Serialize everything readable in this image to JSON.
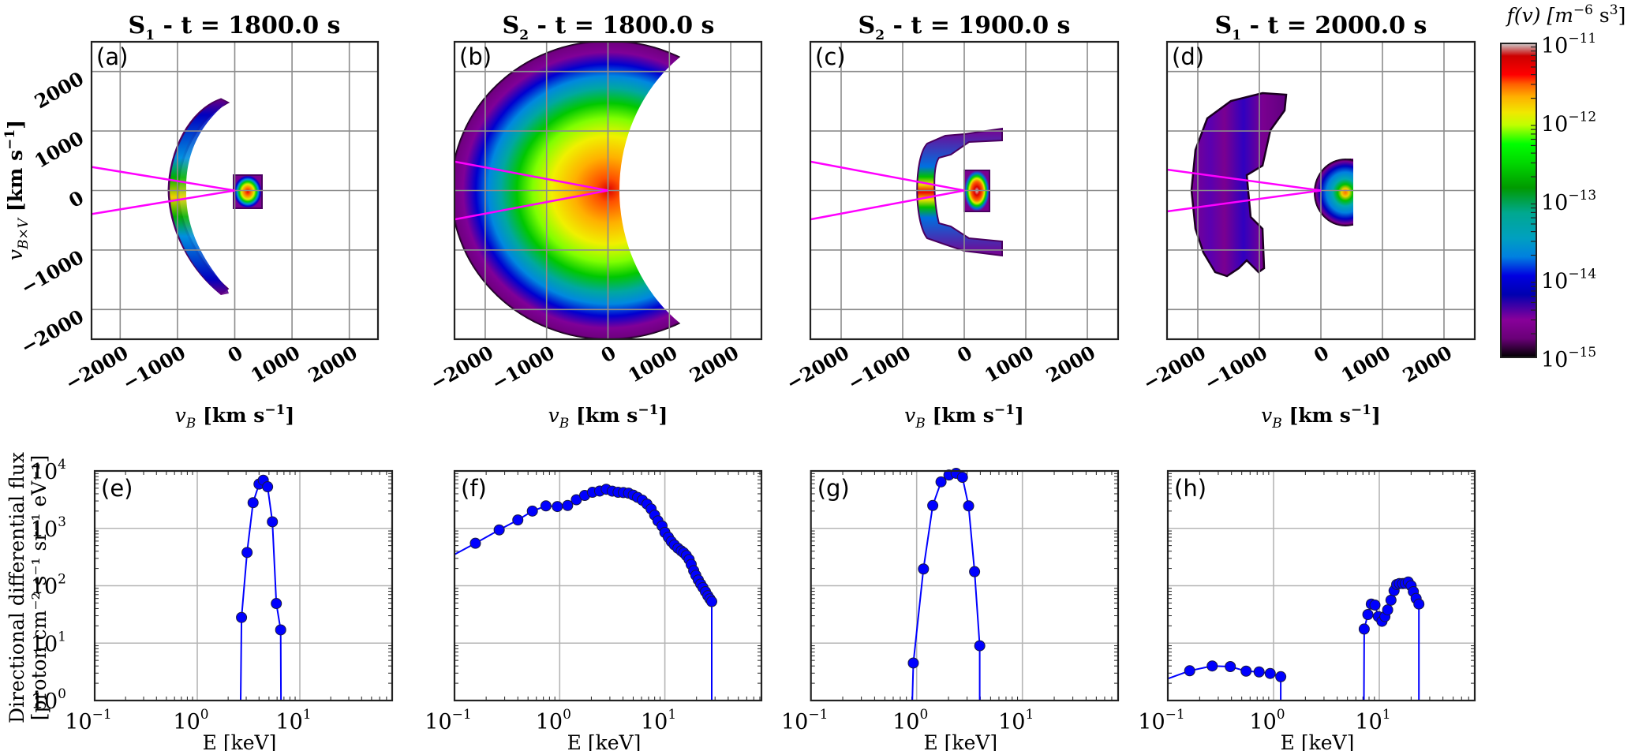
{
  "colorbar": {
    "label": "f(v) [m⁻⁶ s³]",
    "label_main": "f(v) [m",
    "label_exp1": "−6",
    "label_mid": " s",
    "label_exp2": "3",
    "label_end": "]",
    "ticks": [
      {
        "base": "10",
        "exp": "−11"
      },
      {
        "base": "10",
        "exp": "−12"
      },
      {
        "base": "10",
        "exp": "−13"
      },
      {
        "base": "10",
        "exp": "−14"
      },
      {
        "base": "10",
        "exp": "−15"
      }
    ],
    "range_log10": [
      -15,
      -11
    ],
    "colormap": "nipy_spectral"
  },
  "top_axes": {
    "xlabel": "v_B [km s⁻¹]",
    "xlabel_var": "v",
    "xlabel_sub": "B",
    "xlabel_rest": " [km s",
    "xlabel_exp": "−1",
    "xlabel_end": "]",
    "ylabel_var": "v",
    "ylabel_sub": "B×V",
    "ylabel_rest": " [km s",
    "ylabel_exp": "−1",
    "ylabel_end": "]",
    "xticks": [
      "−2000",
      "−1000",
      "0",
      "1000",
      "2000"
    ],
    "yticks": [
      "2000",
      "1000",
      "0",
      "−1000",
      "−2000"
    ],
    "range": [
      -2500,
      2500
    ]
  },
  "bottom_axes": {
    "xlabel": "E [keV]",
    "ylabel_line1": "Directional differential flux",
    "ylabel_line2": "[proton cm⁻² s⁻¹ sr⁻¹ eV⁻¹]",
    "xticks": [
      {
        "base": "10",
        "exp": "−1"
      },
      {
        "base": "10",
        "exp": "0"
      },
      {
        "base": "10",
        "exp": "1"
      }
    ],
    "yticks": [
      {
        "base": "10",
        "exp": "4"
      },
      {
        "base": "10",
        "exp": "3"
      },
      {
        "base": "10",
        "exp": "2"
      },
      {
        "base": "10",
        "exp": "1"
      },
      {
        "base": "10",
        "exp": "0"
      }
    ],
    "xlim": [
      0.1,
      80
    ],
    "ylim": [
      1,
      10000
    ],
    "line_color": "#0000ff",
    "marker_color": "#0000ff"
  },
  "panels_top": [
    {
      "id": "a",
      "label": "(a)",
      "title_s": "S",
      "title_sub": "1",
      "title_rest": " - t = 1800.0 s"
    },
    {
      "id": "b",
      "label": "(b)",
      "title_s": "S",
      "title_sub": "2",
      "title_rest": " - t = 1800.0 s"
    },
    {
      "id": "c",
      "label": "(c)",
      "title_s": "S",
      "title_sub": "2",
      "title_rest": " - t = 1900.0 s"
    },
    {
      "id": "d",
      "label": "(d)",
      "title_s": "S",
      "title_sub": "1",
      "title_rest": " - t = 2000.0 s"
    }
  ],
  "panels_bottom": [
    {
      "id": "e",
      "label": "(e)"
    },
    {
      "id": "f",
      "label": "(f)"
    },
    {
      "id": "g",
      "label": "(g)"
    },
    {
      "id": "h",
      "label": "(h)"
    }
  ],
  "chart_data": [
    {
      "type": "heatmap",
      "panel": "(a)",
      "title": "S1 - t = 1800.0 s",
      "xlabel": "v_B [km s^-1]",
      "ylabel": "v_BxV [km s^-1]",
      "xlim": [
        -2500,
        2500
      ],
      "ylim": [
        -2500,
        2500
      ],
      "grid": true,
      "colorbar_range": [
        1e-15,
        1e-11
      ],
      "features": [
        {
          "shape": "crescent",
          "center_vB": -850,
          "vertical_extent": [
            -1600,
            1600
          ],
          "peak_log10_f": -12.3
        },
        {
          "shape": "core",
          "center_vB": 200,
          "center_vBxV": 0,
          "half_width": 250,
          "peak_log10_f": -11.5
        }
      ],
      "fov_lines_from_origin_deg": [
        171,
        -171
      ]
    },
    {
      "type": "heatmap",
      "panel": "(b)",
      "title": "S2 - t = 1800.0 s",
      "xlim": [
        -2500,
        2500
      ],
      "ylim": [
        -2500,
        2500
      ],
      "grid": true,
      "features": [
        {
          "shape": "kidney",
          "center_vB": 0,
          "outer_radius": 2400,
          "peak_log10_f": -11.5
        }
      ],
      "fov_lines_from_origin_deg": [
        169,
        -169
      ]
    },
    {
      "type": "heatmap",
      "panel": "(c)",
      "title": "S2 - t = 1900.0 s",
      "xlim": [
        -2500,
        2500
      ],
      "ylim": [
        -2500,
        2500
      ],
      "grid": true,
      "features": [
        {
          "shape": "bracket",
          "center_vB": -500,
          "vertical_extent": [
            -1100,
            1100
          ],
          "peak_log10_f": -11.7
        },
        {
          "shape": "core",
          "center_vB": 150,
          "center_vBxV": 0,
          "half_width": 250,
          "peak_log10_f": -11.1
        }
      ],
      "fov_lines_from_origin_deg": [
        169,
        -169
      ]
    },
    {
      "type": "heatmap",
      "panel": "(d)",
      "title": "S1 - t = 2000.0 s",
      "xlim": [
        -2500,
        2500
      ],
      "ylim": [
        -2500,
        2500
      ],
      "grid": true,
      "features": [
        {
          "shape": "streaks",
          "center_vB": -1500,
          "vertical_extent": [
            -1400,
            1600
          ],
          "peak_log10_f": -14.2
        },
        {
          "shape": "core",
          "center_vB": 200,
          "center_vBxV": 0,
          "half_width": 500,
          "peak_log10_f": -12.3
        }
      ],
      "fov_lines_from_origin_deg": [
        172,
        -172
      ]
    },
    {
      "type": "line",
      "panel": "(e)",
      "xlabel": "E [keV]",
      "ylabel": "Directional differential flux [proton cm^-2 s^-1 sr^-1 eV^-1]",
      "xscale": "log",
      "yscale": "log",
      "xlim": [
        0.1,
        80
      ],
      "ylim": [
        1,
        10000
      ],
      "grid": true,
      "series": [
        {
          "name": "flux",
          "segments": [
            {
              "x": [
                2.65,
                2.7,
                3.06,
                3.5,
                4.0,
                4.4,
                4.85,
                5.4,
                5.9,
                6.5,
                6.55
              ],
              "y": [
                1,
                28,
                380,
                2800,
                5900,
                6900,
                5300,
                1300,
                49,
                17,
                1
              ],
              "markers": [
                false,
                true,
                true,
                true,
                true,
                true,
                true,
                true,
                true,
                true,
                false
              ]
            }
          ]
        }
      ]
    },
    {
      "type": "line",
      "panel": "(f)",
      "xscale": "log",
      "yscale": "log",
      "xlim": [
        0.1,
        80
      ],
      "ylim": [
        1,
        10000
      ],
      "grid": true,
      "series": [
        {
          "name": "flux",
          "segments": [
            {
              "x": [
                0.1,
                0.158,
                0.266,
                0.4,
                0.55,
                0.74,
                0.95,
                1.19,
                1.44,
                1.73,
                2.05,
                2.4,
                2.77,
                3.16,
                3.59,
                4.03,
                4.52,
                5.0,
                5.5,
                6.1,
                6.76,
                7.4,
                8.0,
                8.6,
                9.4,
                10.0,
                10.8,
                11.5,
                12.3,
                13.3,
                14.3,
                15.1,
                16.0,
                17.0,
                17.8,
                18.8,
                19.7,
                20.8,
                21.9,
                23.0,
                24.3,
                25.6,
                26.8,
                27.9,
                27.9
              ],
              "y": [
                350,
                550,
                940,
                1400,
                2000,
                2460,
                2400,
                2500,
                3150,
                3750,
                4250,
                4470,
                4800,
                4450,
                4250,
                4200,
                4100,
                3800,
                3470,
                3100,
                2650,
                2180,
                1700,
                1350,
                1100,
                850,
                700,
                590,
                515,
                450,
                405,
                376,
                335,
                287,
                235,
                183,
                152,
                126,
                107,
                93,
                79,
                67,
                59,
                53,
                1
              ],
              "markers": [
                false,
                true,
                true,
                true,
                true,
                true,
                true,
                true,
                true,
                true,
                true,
                true,
                true,
                true,
                true,
                true,
                true,
                true,
                true,
                true,
                true,
                true,
                true,
                true,
                true,
                true,
                true,
                true,
                true,
                true,
                true,
                true,
                true,
                true,
                true,
                true,
                true,
                true,
                true,
                true,
                true,
                true,
                true,
                true,
                false
              ]
            }
          ]
        }
      ]
    },
    {
      "type": "line",
      "panel": "(g)",
      "xscale": "log",
      "yscale": "log",
      "xlim": [
        0.1,
        80
      ],
      "ylim": [
        1,
        10000
      ],
      "grid": true,
      "series": [
        {
          "name": "flux",
          "segments": [
            {
              "x": [
                0.91,
                0.93,
                1.16,
                1.42,
                1.7,
                2.02,
                2.36,
                2.71,
                3.1,
                3.53,
                3.95,
                3.95
              ],
              "y": [
                1,
                4.5,
                196,
                2500,
                6450,
                8500,
                9100,
                7750,
                2460,
                176,
                9.0,
                1
              ],
              "markers": [
                false,
                true,
                true,
                true,
                true,
                true,
                true,
                true,
                true,
                true,
                true,
                false
              ]
            }
          ]
        }
      ]
    },
    {
      "type": "line",
      "panel": "(h)",
      "xscale": "log",
      "yscale": "log",
      "xlim": [
        0.1,
        80
      ],
      "ylim": [
        1,
        10000
      ],
      "grid": true,
      "series": [
        {
          "name": "flux",
          "segments": [
            {
              "x": [
                0.1,
                0.161,
                0.263,
                0.39,
                0.55,
                0.73,
                0.93,
                1.17,
                1.17
              ],
              "y": [
                2.4,
                3.3,
                4.0,
                3.9,
                3.25,
                3.15,
                2.96,
                2.6,
                1
              ],
              "markers": [
                false,
                true,
                true,
                true,
                true,
                true,
                true,
                true,
                false
              ]
            },
            {
              "x": [
                7.15,
                7.2,
                7.8,
                8.4,
                9.1,
                9.8,
                10.6,
                11.3,
                12.0,
                12.9,
                13.8,
                14.6,
                15.5,
                16.6,
                17.6,
                18.8,
                20.0,
                21.0,
                22.3,
                23.7,
                23.7
              ],
              "y": [
                1,
                17.6,
                31.5,
                48,
                46,
                29,
                24,
                29,
                38,
                56,
                82,
                105,
                109,
                109,
                110,
                116,
                100,
                79,
                60,
                48,
                1
              ],
              "markers": [
                false,
                true,
                true,
                true,
                true,
                true,
                true,
                true,
                true,
                true,
                true,
                true,
                true,
                true,
                true,
                true,
                true,
                true,
                true,
                true,
                false
              ]
            }
          ]
        }
      ]
    }
  ]
}
